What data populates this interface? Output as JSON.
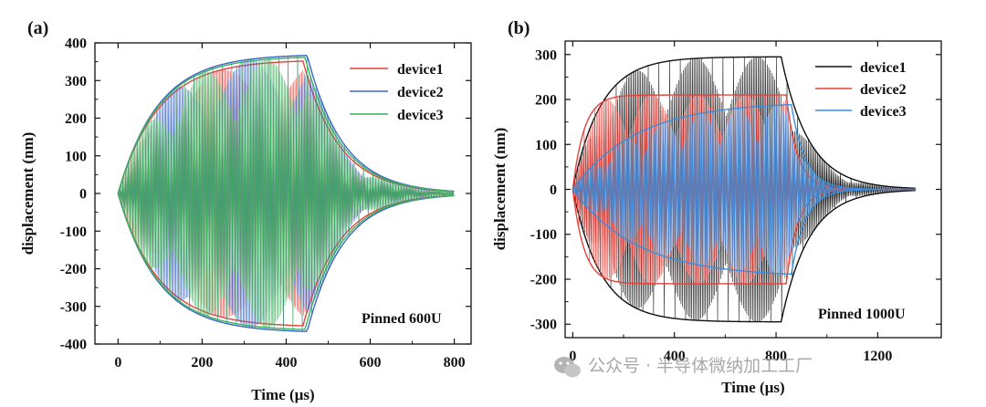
{
  "chart_data": [
    {
      "type": "line",
      "panel_label": "(a)",
      "xlabel": "Time (µs)",
      "ylabel": "displacement (nm)",
      "xlim": [
        -55,
        840
      ],
      "ylim": [
        -400,
        400
      ],
      "xticks": [
        0,
        200,
        400,
        600,
        800
      ],
      "yticks": [
        -400,
        -300,
        -200,
        -100,
        0,
        100,
        200,
        300,
        400
      ],
      "annotation": "Pinned 600U",
      "legend_position": "top-right",
      "series": [
        {
          "name": "device1",
          "color": "#e8413a",
          "amplitude_nm": 355,
          "drive_end_us": 440,
          "rise_tau_us": 95,
          "decay_tau_us": 85,
          "t_end_us": 800
        },
        {
          "name": "device2",
          "color": "#3a66c9",
          "amplitude_nm": 370,
          "drive_end_us": 450,
          "rise_tau_us": 95,
          "decay_tau_us": 85,
          "t_end_us": 800
        },
        {
          "name": "device3",
          "color": "#3cb05a",
          "amplitude_nm": 365,
          "drive_end_us": 445,
          "rise_tau_us": 95,
          "decay_tau_us": 85,
          "t_end_us": 800
        }
      ]
    },
    {
      "type": "line",
      "panel_label": "(b)",
      "xlabel": "Time (µs)",
      "ylabel": "displacement (nm)",
      "xlim": [
        -30,
        1450
      ],
      "ylim": [
        -330,
        330
      ],
      "xticks": [
        0,
        400,
        800,
        1200
      ],
      "yticks": [
        -300,
        -200,
        -100,
        0,
        100,
        200,
        300
      ],
      "annotation": "Pinned 1000U",
      "legend_position": "top-right",
      "series": [
        {
          "name": "device1",
          "color": "#111111",
          "amplitude_nm": 295,
          "drive_end_us": 820,
          "rise_tau_us": 110,
          "decay_tau_us": 110,
          "t_end_us": 1350
        },
        {
          "name": "device2",
          "color": "#e8413a",
          "amplitude_nm": 210,
          "drive_end_us": 840,
          "rise_tau_us": 45,
          "decay_tau_us": 45,
          "t_end_us": 1350
        },
        {
          "name": "device3",
          "color": "#3a8ee0",
          "amplitude_nm": 195,
          "drive_end_us": 860,
          "rise_tau_us": 250,
          "decay_tau_us": 55,
          "t_end_us": 1350
        }
      ]
    }
  ],
  "watermark": "公众号 · 半导体微纳加工工厂"
}
